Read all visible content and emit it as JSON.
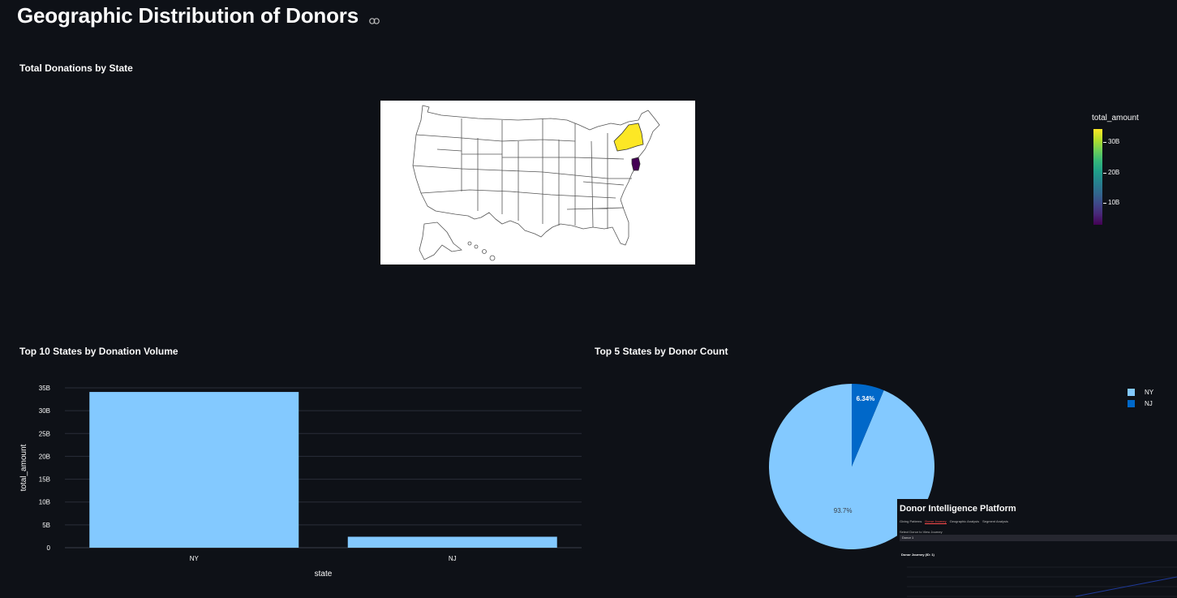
{
  "page": {
    "title": "Geographic Distribution of Donors",
    "link_icon": "link-icon"
  },
  "map_section": {
    "title": "Total Donations by State",
    "highlight_colors": {
      "NY": "#fde725",
      "NJ": "#440154"
    },
    "colorbar": {
      "title": "total_amount",
      "ticks": [
        "30B",
        "20B",
        "10B"
      ],
      "colorscale": "viridis"
    }
  },
  "bar_section": {
    "title": "Top 10 States by Donation Volume"
  },
  "pie_section": {
    "title": "Top 5 States by Donor Count",
    "legend": [
      {
        "label": "NY",
        "color": "#83c9ff"
      },
      {
        "label": "NJ",
        "color": "#0068c9"
      }
    ]
  },
  "chart_data": [
    {
      "type": "bar",
      "title": "Top 10 States by Donation Volume",
      "categories": [
        "NY",
        "NJ"
      ],
      "values": [
        34100000000,
        2400000000
      ],
      "xlabel": "state",
      "ylabel": "total_amount",
      "ylim": [
        0,
        35000000000
      ],
      "yticks": [
        0,
        5000000000,
        10000000000,
        15000000000,
        20000000000,
        25000000000,
        30000000000,
        35000000000
      ],
      "ytick_labels": [
        "0",
        "5B",
        "10B",
        "15B",
        "20B",
        "25B",
        "30B",
        "35B"
      ],
      "color": "#83c9ff",
      "grid": true
    },
    {
      "type": "pie",
      "title": "Top 5 States by Donor Count",
      "labels": [
        "NY",
        "NJ"
      ],
      "values": [
        93.66,
        6.34
      ],
      "slice_labels": [
        "93.7%",
        "6.34%"
      ],
      "colors": [
        "#83c9ff",
        "#0068c9"
      ],
      "legend_position": "top-right"
    }
  ],
  "inset_screenshot": {
    "title": "Donor Intelligence Platform",
    "tabs": [
      "Giving Patterns",
      "Donor Journey",
      "Geographic Analysis",
      "Segment Analysis"
    ],
    "active_tab": "Donor Journey",
    "select_label": "Select Donor to View Journey",
    "select_value": "Donor 1",
    "chart_title": "Donor Journey (ID: 1)"
  }
}
